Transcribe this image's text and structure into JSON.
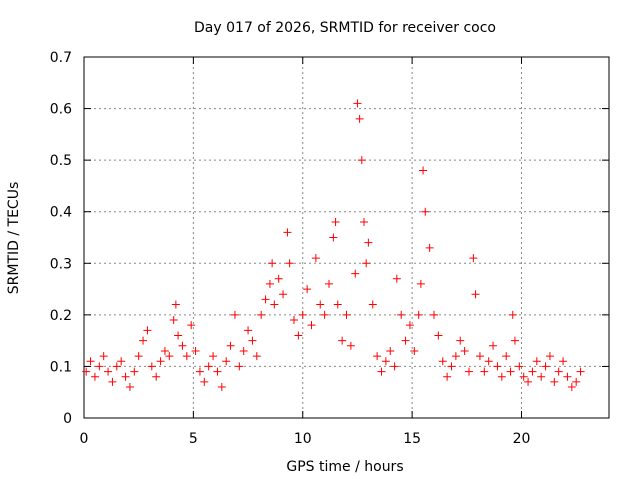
{
  "chart_data": {
    "type": "scatter",
    "title": "Day 017 of 2026, SRMTID for receiver coco",
    "xlabel": "GPS time / hours",
    "ylabel": "SRMTID / TECUs",
    "xlim": [
      0,
      24
    ],
    "ylim": [
      0,
      0.7
    ],
    "x_ticks": [
      0,
      5,
      10,
      15,
      20
    ],
    "x_tick_labels": [
      "0",
      "5",
      "10",
      "15",
      "20"
    ],
    "y_ticks": [
      0,
      0.1,
      0.2,
      0.3,
      0.4,
      0.5,
      0.6,
      0.7
    ],
    "y_tick_labels": [
      "0",
      "0.1",
      "0.2",
      "0.3",
      "0.4",
      "0.5",
      "0.6",
      "0.7"
    ],
    "grid": true,
    "marker": "+",
    "series": [
      {
        "name": "SRMTID",
        "color": "#ff0000",
        "x": [
          0.1,
          0.3,
          0.5,
          0.7,
          0.9,
          1.1,
          1.3,
          1.5,
          1.7,
          1.9,
          2.1,
          2.3,
          2.5,
          2.7,
          2.9,
          3.1,
          3.3,
          3.5,
          3.7,
          3.9,
          4.1,
          4.2,
          4.3,
          4.5,
          4.7,
          4.9,
          5.1,
          5.3,
          5.5,
          5.7,
          5.9,
          6.1,
          6.3,
          6.5,
          6.7,
          6.9,
          7.1,
          7.3,
          7.5,
          7.7,
          7.9,
          8.1,
          8.3,
          8.5,
          8.6,
          8.7,
          8.9,
          9.1,
          9.3,
          9.4,
          9.6,
          9.8,
          10.0,
          10.2,
          10.4,
          10.6,
          10.8,
          11.0,
          11.2,
          11.4,
          11.5,
          11.6,
          11.8,
          12.0,
          12.2,
          12.4,
          12.5,
          12.6,
          12.7,
          12.8,
          12.9,
          13.0,
          13.2,
          13.4,
          13.6,
          13.8,
          14.0,
          14.2,
          14.3,
          14.5,
          14.7,
          14.9,
          15.1,
          15.3,
          15.4,
          15.5,
          15.6,
          15.8,
          16.0,
          16.2,
          16.4,
          16.6,
          16.8,
          17.0,
          17.2,
          17.4,
          17.6,
          17.8,
          17.9,
          18.1,
          18.3,
          18.5,
          18.7,
          18.9,
          19.1,
          19.3,
          19.5,
          19.6,
          19.7,
          19.9,
          20.1,
          20.3,
          20.5,
          20.7,
          20.9,
          21.1,
          21.3,
          21.5,
          21.7,
          21.9,
          22.1,
          22.3,
          22.5,
          22.7
        ],
        "y": [
          0.09,
          0.11,
          0.08,
          0.1,
          0.12,
          0.09,
          0.07,
          0.1,
          0.11,
          0.08,
          0.06,
          0.09,
          0.12,
          0.15,
          0.17,
          0.1,
          0.08,
          0.11,
          0.13,
          0.12,
          0.19,
          0.22,
          0.16,
          0.14,
          0.12,
          0.18,
          0.13,
          0.09,
          0.07,
          0.1,
          0.12,
          0.09,
          0.06,
          0.11,
          0.14,
          0.2,
          0.1,
          0.13,
          0.17,
          0.15,
          0.12,
          0.2,
          0.23,
          0.26,
          0.3,
          0.22,
          0.27,
          0.24,
          0.36,
          0.3,
          0.19,
          0.16,
          0.2,
          0.25,
          0.18,
          0.31,
          0.22,
          0.2,
          0.26,
          0.35,
          0.38,
          0.22,
          0.15,
          0.2,
          0.14,
          0.28,
          0.61,
          0.58,
          0.5,
          0.38,
          0.3,
          0.34,
          0.22,
          0.12,
          0.09,
          0.11,
          0.13,
          0.1,
          0.27,
          0.2,
          0.15,
          0.18,
          0.13,
          0.2,
          0.26,
          0.48,
          0.4,
          0.33,
          0.2,
          0.16,
          0.11,
          0.08,
          0.1,
          0.12,
          0.15,
          0.13,
          0.09,
          0.31,
          0.24,
          0.12,
          0.09,
          0.11,
          0.14,
          0.1,
          0.08,
          0.12,
          0.09,
          0.2,
          0.15,
          0.1,
          0.08,
          0.07,
          0.09,
          0.11,
          0.08,
          0.1,
          0.12,
          0.07,
          0.09,
          0.11,
          0.08,
          0.06,
          0.07,
          0.09
        ]
      }
    ]
  }
}
